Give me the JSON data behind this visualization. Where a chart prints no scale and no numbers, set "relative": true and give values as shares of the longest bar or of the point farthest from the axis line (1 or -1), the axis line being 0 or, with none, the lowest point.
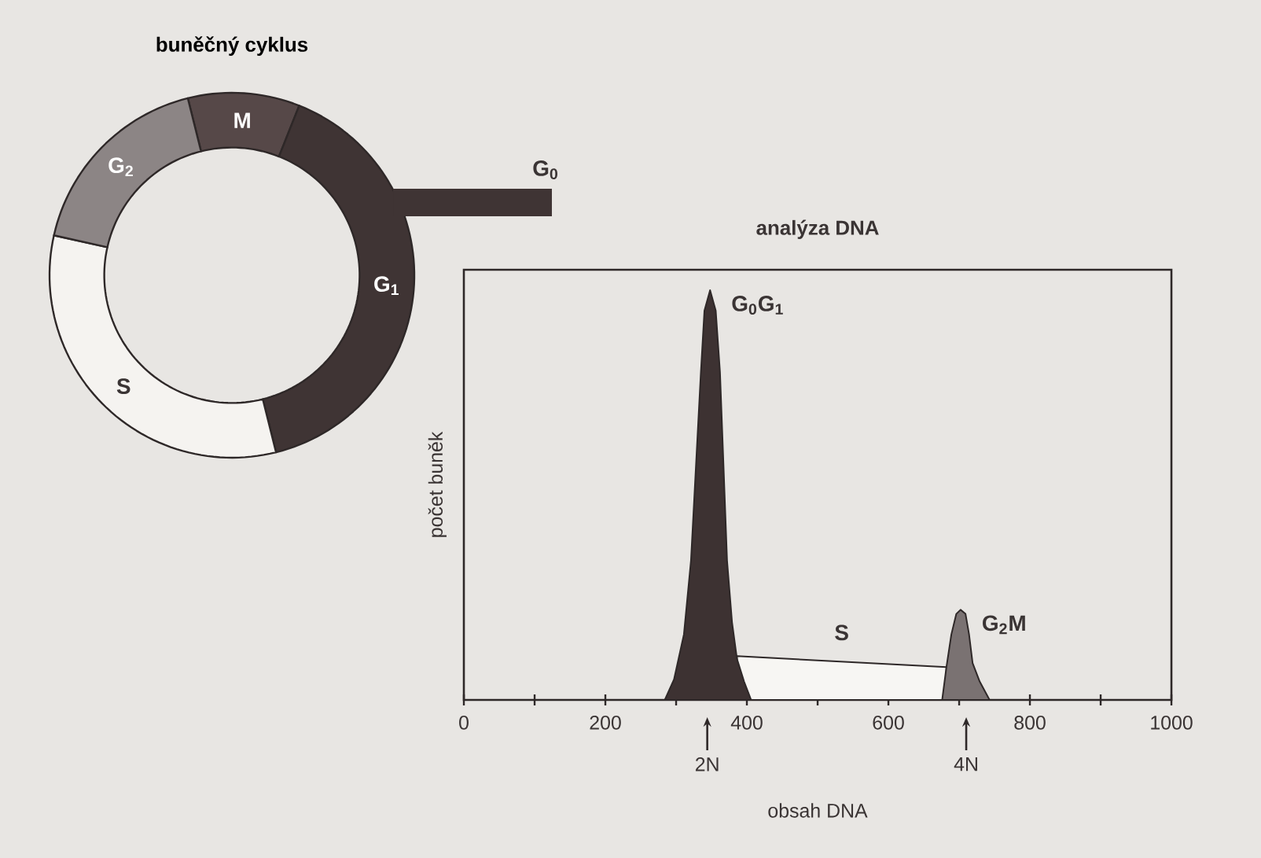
{
  "chart_data": [
    {
      "type": "donut",
      "title": "buněčný cyklus",
      "categories": [
        "M",
        "G$_{1}$",
        "S",
        "G$_{2}$"
      ],
      "values": [
        9.9,
        40.1,
        32.4,
        17.6
      ],
      "colors": [
        "#564848",
        "#3f3434",
        "#f5f3f0",
        "#8c8585"
      ],
      "annotations": [
        "G$_{0}$"
      ]
    },
    {
      "type": "area",
      "title": "analýza DNA",
      "xlabel": "obsah DNA",
      "ylabel": "počet buněk",
      "relative": true,
      "xlim": [
        0,
        1000
      ],
      "xticks": [
        0,
        {
          "value": 100,
          "label": null
        },
        200,
        {
          "value": 300,
          "label": null
        },
        400,
        {
          "value": 500,
          "label": null
        },
        600,
        {
          "value": 700,
          "label": null
        },
        800,
        {
          "value": 900,
          "label": null
        },
        1000
      ],
      "series": [
        {
          "name": "S",
          "color": "#f7f6f3",
          "x": [
            386,
            682
          ],
          "values": [
            0.107,
            0.08
          ]
        },
        {
          "name": "G$_{0}$G$_{1}$",
          "color": "#3d3232",
          "x": [
            284,
            297,
            311,
            321,
            328,
            335,
            340,
            348,
            356,
            362,
            367,
            372,
            379,
            386,
            396,
            406
          ],
          "values": [
            0,
            0.05,
            0.16,
            0.34,
            0.57,
            0.8,
            0.95,
            1.0,
            0.95,
            0.8,
            0.57,
            0.34,
            0.19,
            0.1,
            0.045,
            0
          ]
        },
        {
          "name": "G$_{2}$M",
          "color": "#7a7272",
          "x": [
            676,
            682,
            689,
            696,
            702,
            709,
            714,
            719,
            729,
            743
          ],
          "values": [
            0,
            0.08,
            0.16,
            0.21,
            0.22,
            0.21,
            0.16,
            0.09,
            0.045,
            0
          ]
        }
      ],
      "annotations": [
        {
          "text": "2N",
          "x": 344,
          "y": 0
        },
        {
          "text": "4N",
          "x": 710,
          "y": 0
        }
      ]
    }
  ]
}
